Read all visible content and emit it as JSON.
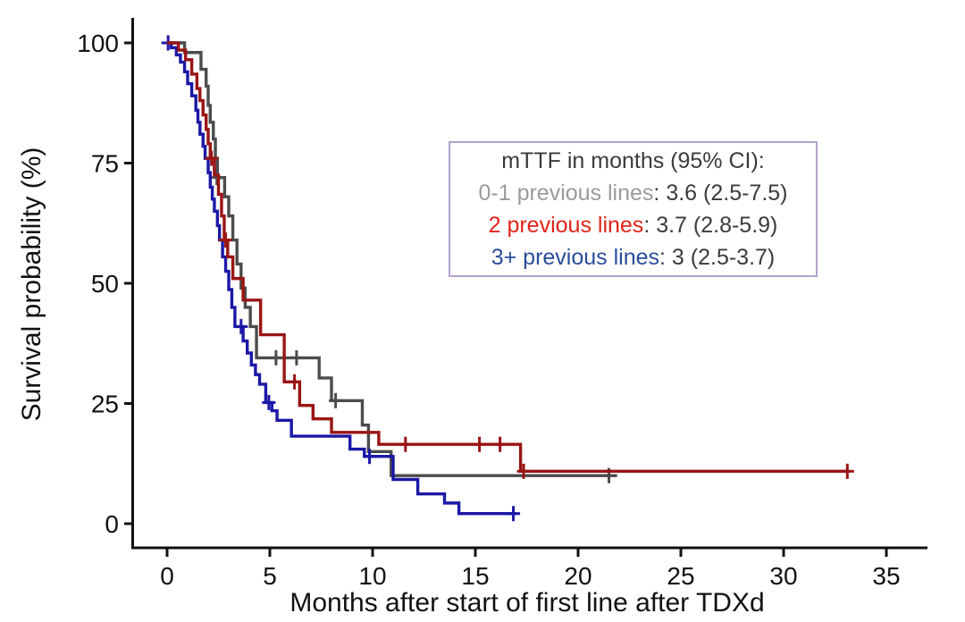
{
  "legend": {
    "title": "mTTF in months (95% CI):",
    "border_color": "#b3a3cc",
    "entries": [
      {
        "label": "0-1 previous lines",
        "value": ": 3.6 (2.5-7.5)",
        "color": "#9b9b9b"
      },
      {
        "label": "2 previous lines",
        "value": ": 3.7 (2.8-5.9)",
        "color": "#e02418"
      },
      {
        "label": "3+ previous lines",
        "value": ": 3 (2.5-3.7)",
        "color": "#2a4c9b"
      }
    ]
  },
  "chart_data": {
    "type": "line",
    "subtype": "kaplan-meier-step",
    "title": "",
    "xlabel": "Months after start of first line after TDXd",
    "ylabel": "Survival probability (%)",
    "x_ticks": [
      0,
      5,
      10,
      15,
      20,
      25,
      30,
      35
    ],
    "y_ticks": [
      0,
      25,
      50,
      75,
      100
    ],
    "xlim": [
      0,
      37
    ],
    "ylim": [
      0,
      100
    ],
    "grid": false,
    "legend_position": "inset upper right",
    "axis_color": "#111111",
    "series": [
      {
        "name": "0-1 previous lines",
        "median_months": "3.6 (2.5-7.5)",
        "color": "#4c4c4c",
        "points": [
          [
            0,
            100
          ],
          [
            0.85,
            98
          ],
          [
            1.65,
            94.5
          ],
          [
            1.9,
            91
          ],
          [
            2.0,
            87
          ],
          [
            2.1,
            83.5
          ],
          [
            2.25,
            80
          ],
          [
            2.35,
            76
          ],
          [
            2.45,
            72
          ],
          [
            2.8,
            68
          ],
          [
            3.0,
            64
          ],
          [
            3.2,
            59
          ],
          [
            3.4,
            54
          ],
          [
            3.6,
            49
          ],
          [
            3.8,
            45
          ],
          [
            4.05,
            41
          ],
          [
            4.35,
            34.5
          ],
          [
            7.4,
            30.3
          ],
          [
            8.0,
            25.6
          ],
          [
            9.5,
            20.5
          ],
          [
            9.8,
            15
          ],
          [
            10.9,
            10
          ],
          [
            21.9,
            10
          ]
        ],
        "censor_marks": [
          [
            2.42,
            72
          ],
          [
            5.3,
            34.5
          ],
          [
            6.3,
            34.5
          ],
          [
            8.2,
            25.6
          ],
          [
            21.5,
            10
          ]
        ]
      },
      {
        "name": "2 previous lines",
        "median_months": "3.7 (2.8-5.9)",
        "color": "#9a1414",
        "points": [
          [
            0,
            100
          ],
          [
            0.55,
            98.5
          ],
          [
            0.9,
            96.5
          ],
          [
            1.2,
            93.5
          ],
          [
            1.45,
            90.5
          ],
          [
            1.6,
            88
          ],
          [
            1.75,
            85
          ],
          [
            1.9,
            82
          ],
          [
            2.0,
            79
          ],
          [
            2.1,
            76
          ],
          [
            2.3,
            72.5
          ],
          [
            2.5,
            68.5
          ],
          [
            2.65,
            64
          ],
          [
            2.78,
            59
          ],
          [
            2.95,
            55.5
          ],
          [
            3.2,
            51
          ],
          [
            3.7,
            46.5
          ],
          [
            4.55,
            39.3
          ],
          [
            5.7,
            29.5
          ],
          [
            6.45,
            24.6
          ],
          [
            7.1,
            21.8
          ],
          [
            8.0,
            19
          ],
          [
            10.3,
            16.5
          ],
          [
            17.2,
            10.9
          ],
          [
            33.1,
            10.9
          ]
        ],
        "censor_marks": [
          [
            2.16,
            76
          ],
          [
            2.85,
            59
          ],
          [
            6.2,
            29.5
          ],
          [
            11.6,
            16.5
          ],
          [
            15.2,
            16.5
          ],
          [
            16.2,
            16.5
          ],
          [
            17.35,
            10.9
          ],
          [
            33.1,
            10.9
          ]
        ]
      },
      {
        "name": "3+ previous lines",
        "median_months": "3 (2.5-3.7)",
        "color": "#1b18a6",
        "points": [
          [
            0,
            100
          ],
          [
            0.2,
            99
          ],
          [
            0.45,
            97.5
          ],
          [
            0.65,
            96
          ],
          [
            0.85,
            94
          ],
          [
            1.0,
            91.5
          ],
          [
            1.2,
            89
          ],
          [
            1.4,
            86
          ],
          [
            1.5,
            83.5
          ],
          [
            1.6,
            81
          ],
          [
            1.75,
            78.5
          ],
          [
            1.85,
            76
          ],
          [
            2.0,
            73
          ],
          [
            2.1,
            70
          ],
          [
            2.2,
            67.5
          ],
          [
            2.3,
            65
          ],
          [
            2.45,
            62
          ],
          [
            2.55,
            59
          ],
          [
            2.7,
            55.5
          ],
          [
            2.85,
            52.5
          ],
          [
            3.0,
            48.7
          ],
          [
            3.15,
            45
          ],
          [
            3.3,
            41
          ],
          [
            3.7,
            38
          ],
          [
            3.9,
            35.5
          ],
          [
            4.1,
            33
          ],
          [
            4.3,
            31
          ],
          [
            4.5,
            29
          ],
          [
            4.8,
            25.2
          ],
          [
            5.1,
            23.5
          ],
          [
            5.35,
            21.5
          ],
          [
            6.05,
            18.2
          ],
          [
            8.9,
            15.5
          ],
          [
            9.6,
            14
          ],
          [
            11.0,
            9.2
          ],
          [
            12.2,
            6.2
          ],
          [
            13.5,
            4.3
          ],
          [
            14.2,
            2.1
          ],
          [
            17.0,
            2.1
          ]
        ],
        "censor_marks": [
          [
            0.05,
            100
          ],
          [
            3.6,
            41
          ],
          [
            4.95,
            25.2
          ],
          [
            9.85,
            14
          ],
          [
            16.85,
            2.1
          ]
        ]
      }
    ]
  }
}
